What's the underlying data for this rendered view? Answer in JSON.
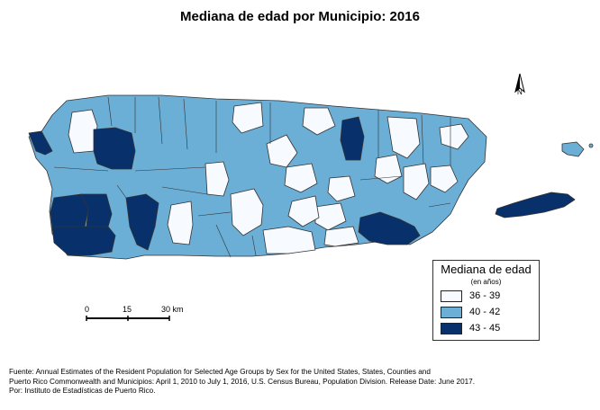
{
  "title": "Mediana de edad por Municipio: 2016",
  "north_label": "N",
  "scale": {
    "labels": [
      "0",
      "15",
      "30 km"
    ]
  },
  "legend": {
    "title": "Mediana de edad",
    "subtitle": "(en años)",
    "items": [
      {
        "label": "36 - 39",
        "color": "#f7fbff"
      },
      {
        "label": "40 - 42",
        "color": "#6baed6"
      },
      {
        "label": "43 - 45",
        "color": "#08306b"
      }
    ]
  },
  "colors": {
    "light": "#f7fbff",
    "mid": "#6baed6",
    "dark": "#08306b",
    "border": "#333333"
  },
  "source_lines": [
    "Fuente: Annual Estimates of the Resident Population for Selected Age Groups by Sex for the United States, States, Counties and",
    "Puerto Rico Commonwealth and Municipios: April 1, 2010 to July 1, 2016, U.S. Census Bureau, Population Division.  Release Date: June 2017.",
    "Por: Instituto de Estadísticas de Puerto Rico."
  ]
}
